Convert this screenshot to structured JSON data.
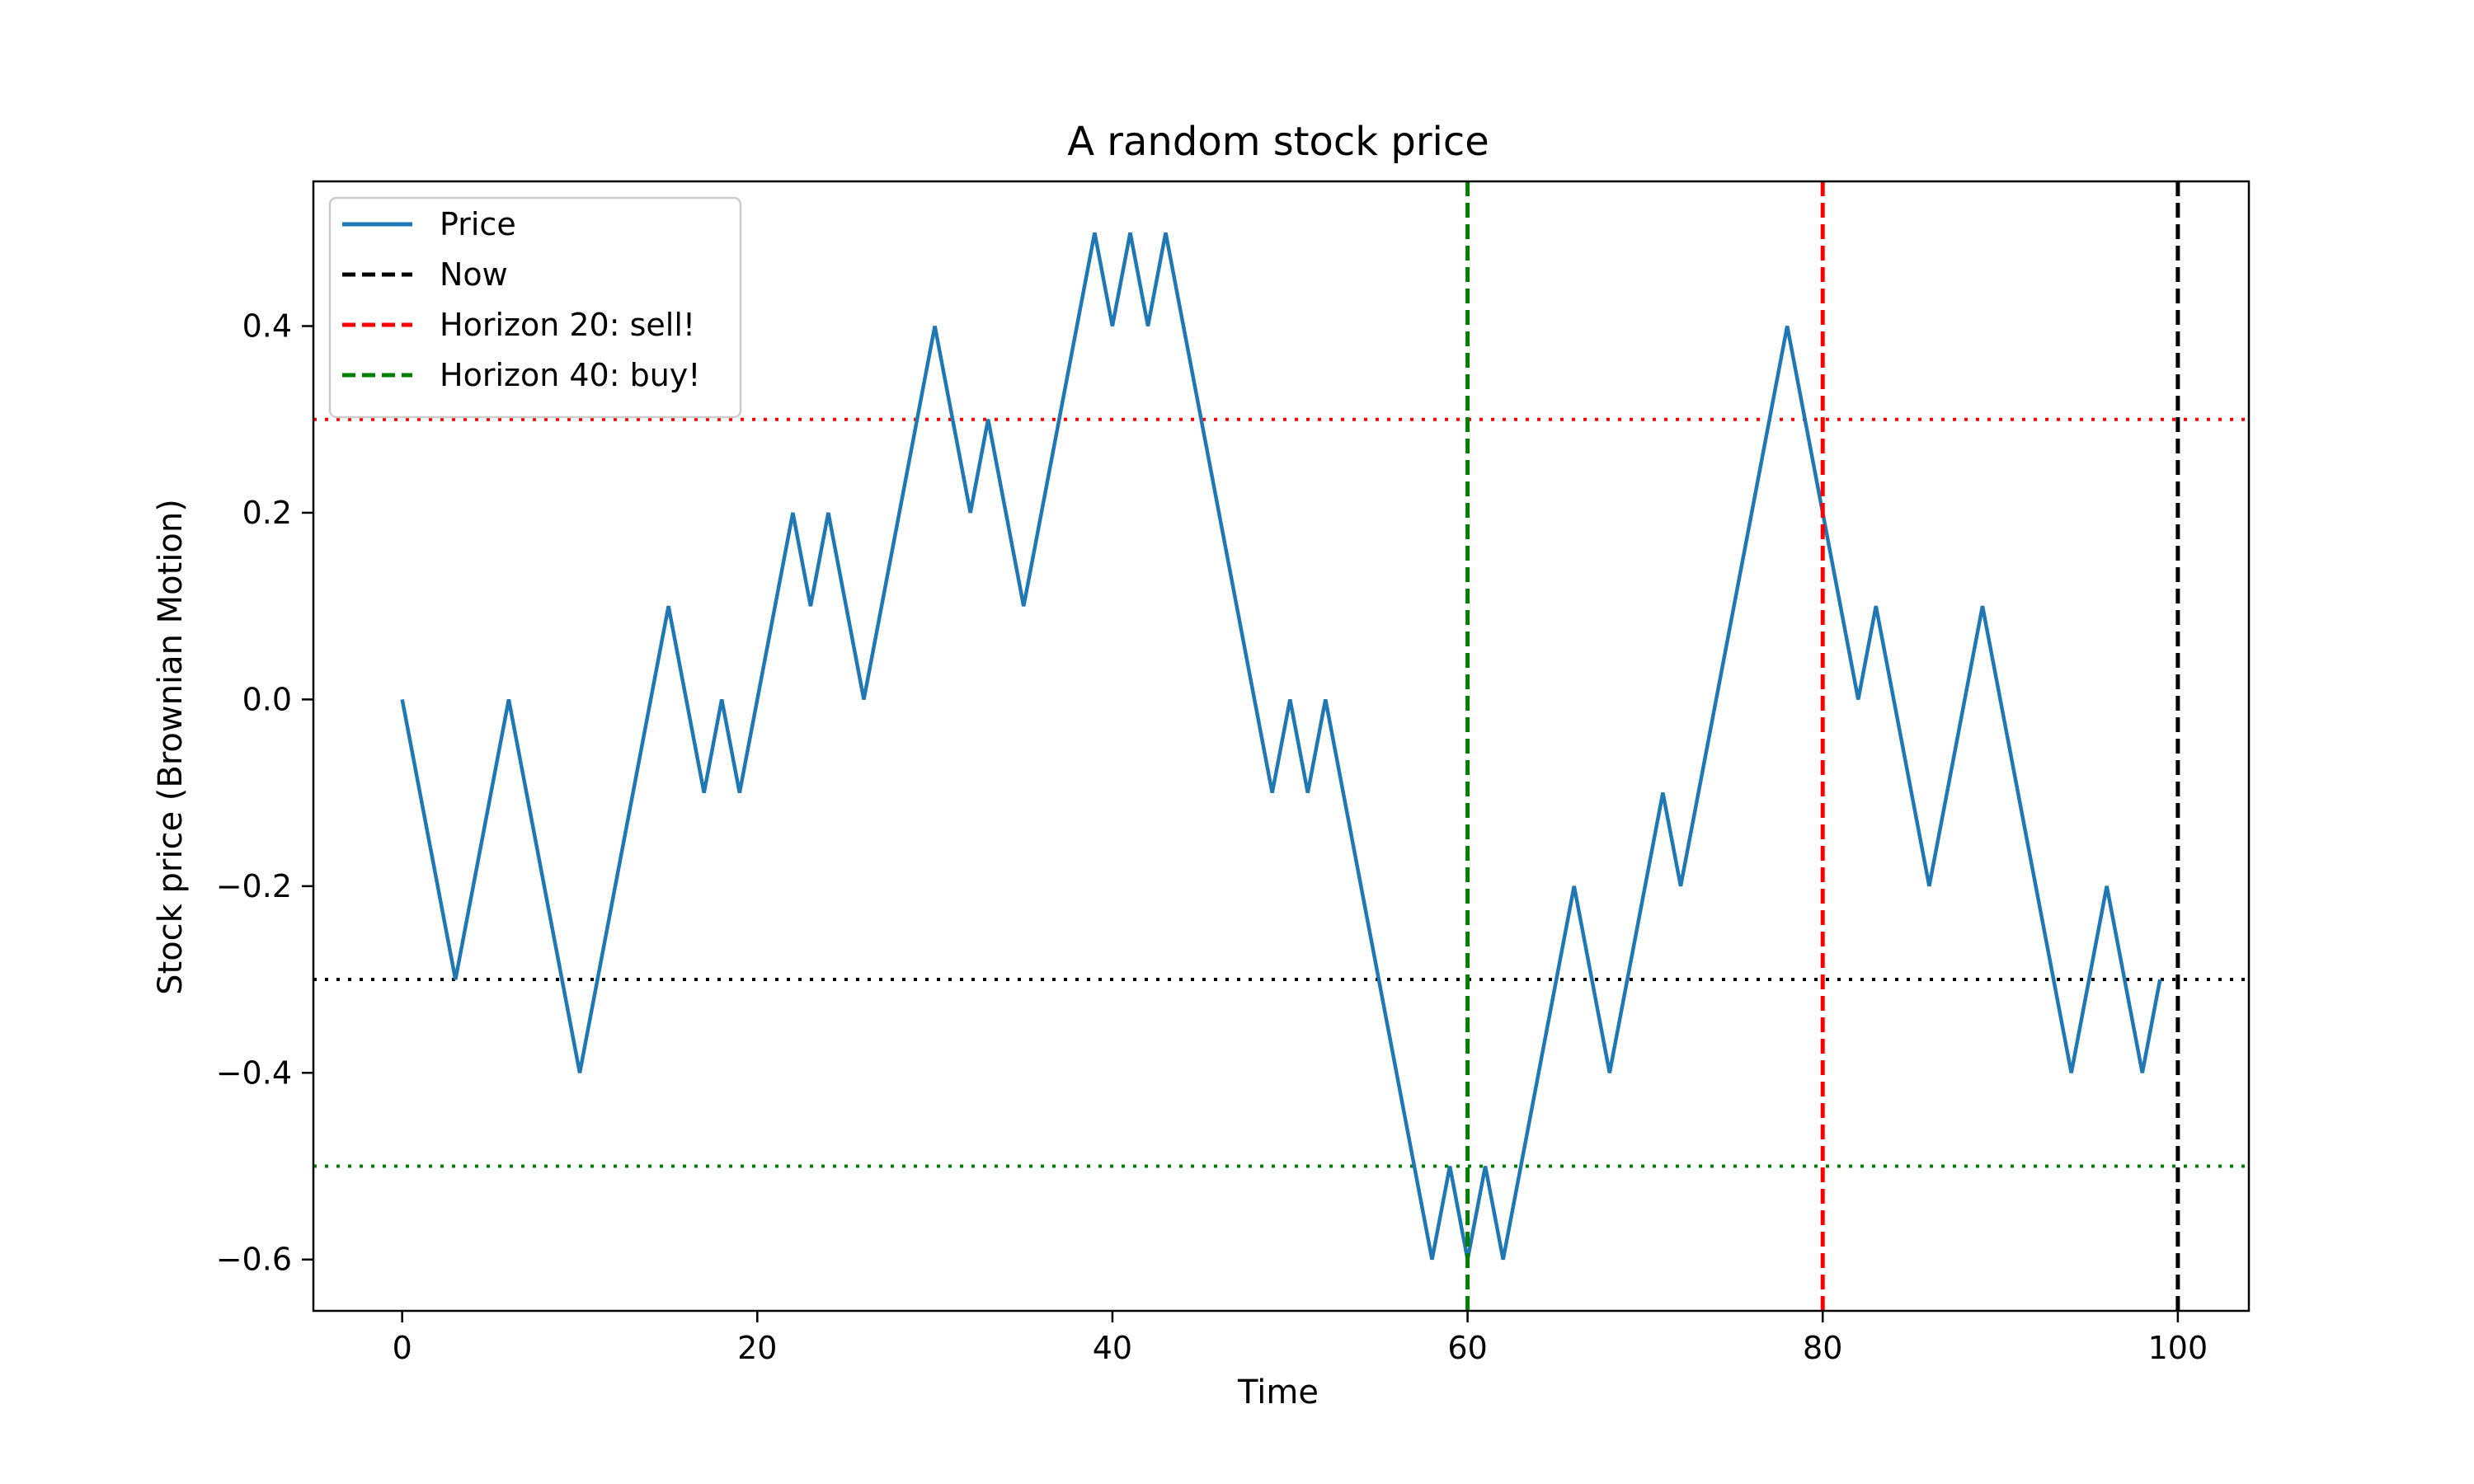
{
  "chart_data": {
    "type": "line",
    "title": "A random stock price",
    "xlabel": "Time",
    "ylabel": "Stock price (Brownian Motion)",
    "xlim": [
      -5,
      104
    ],
    "ylim": [
      -0.655,
      0.555
    ],
    "xticks": [
      0,
      20,
      40,
      60,
      80,
      100
    ],
    "xtick_labels": [
      "0",
      "20",
      "40",
      "60",
      "80",
      "100"
    ],
    "yticks": [
      -0.6,
      -0.4,
      -0.2,
      0.0,
      0.2,
      0.4
    ],
    "ytick_labels": [
      "−0.6",
      "−0.4",
      "−0.2",
      "0.0",
      "0.2",
      "0.4"
    ],
    "grid": false,
    "legend_placement": "upper-left",
    "series": [
      {
        "name": "Price",
        "color": "#1f77b4",
        "style": "solid",
        "x": [
          0,
          3,
          6,
          10,
          15,
          17,
          18,
          19,
          22,
          23,
          24,
          26,
          30,
          32,
          33,
          35,
          39,
          40,
          41,
          42,
          43,
          49,
          50,
          51,
          52,
          58,
          59,
          60,
          61,
          62,
          66,
          68,
          71,
          72,
          78,
          82,
          83,
          86,
          89,
          94,
          96,
          98,
          99
        ],
        "y": [
          0.0,
          -0.3,
          0.0,
          -0.4,
          0.1,
          -0.1,
          0.0,
          -0.1,
          0.2,
          0.1,
          0.2,
          0.0,
          0.4,
          0.2,
          0.3,
          0.1,
          0.5,
          0.4,
          0.5,
          0.4,
          0.5,
          -0.1,
          0.0,
          -0.1,
          0.0,
          -0.6,
          -0.5,
          -0.6,
          -0.5,
          -0.6,
          -0.2,
          -0.4,
          -0.1,
          -0.2,
          0.4,
          0.0,
          0.1,
          -0.2,
          0.1,
          -0.4,
          -0.2,
          -0.4,
          -0.3
        ]
      }
    ],
    "vertical_lines": [
      {
        "name": "Now",
        "x": 100,
        "color": "#000000",
        "style": "dashed",
        "in_legend": true
      },
      {
        "name": "Horizon 20: sell!",
        "x": 80,
        "color": "#ff0000",
        "style": "dashed",
        "in_legend": true
      },
      {
        "name": "Horizon 40: buy!",
        "x": 60,
        "color": "#008000",
        "style": "dashed",
        "in_legend": true
      }
    ],
    "horizontal_lines": [
      {
        "y": 0.3,
        "color": "#ff0000",
        "style": "dotted"
      },
      {
        "y": -0.3,
        "color": "#000000",
        "style": "dotted"
      },
      {
        "y": -0.5,
        "color": "#008000",
        "style": "dotted"
      }
    ]
  }
}
